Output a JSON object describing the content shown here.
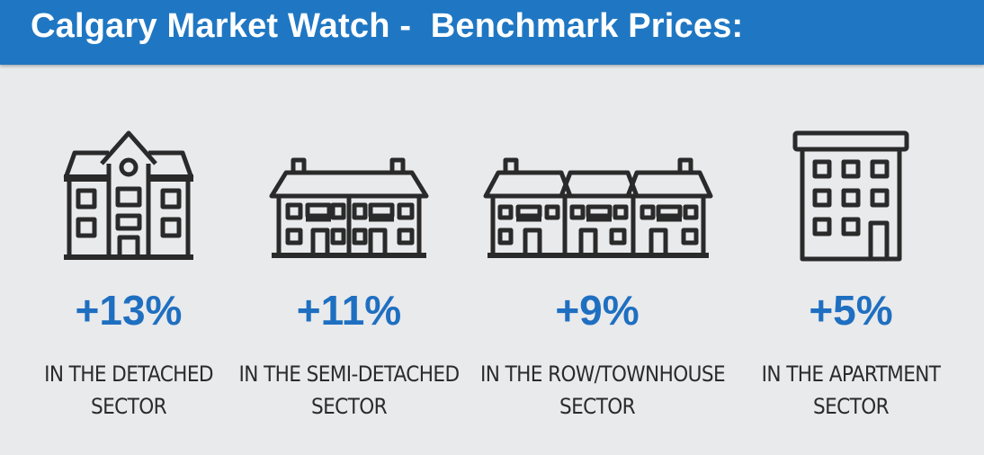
{
  "header": {
    "title": "Calgary Market Watch -  Benchmark Prices:"
  },
  "colors": {
    "header_bg": "#1f77c3",
    "accent": "#1f6fc1",
    "background": "#e9eaec"
  },
  "sectors": [
    {
      "icon": "detached-house-icon",
      "change": "+13%",
      "line1": "IN THE DETACHED",
      "line2": "SECTOR"
    },
    {
      "icon": "semi-detached-house-icon",
      "change": "+11%",
      "line1": "IN THE SEMI-DETACHED",
      "line2": "SECTOR"
    },
    {
      "icon": "row-townhouse-icon",
      "change": "+9%",
      "line1": "IN THE ROW/TOWNHOUSE",
      "line2": "SECTOR"
    },
    {
      "icon": "apartment-building-icon",
      "change": "+5%",
      "line1": "IN THE APARTMENT",
      "line2": "SECTOR"
    }
  ]
}
